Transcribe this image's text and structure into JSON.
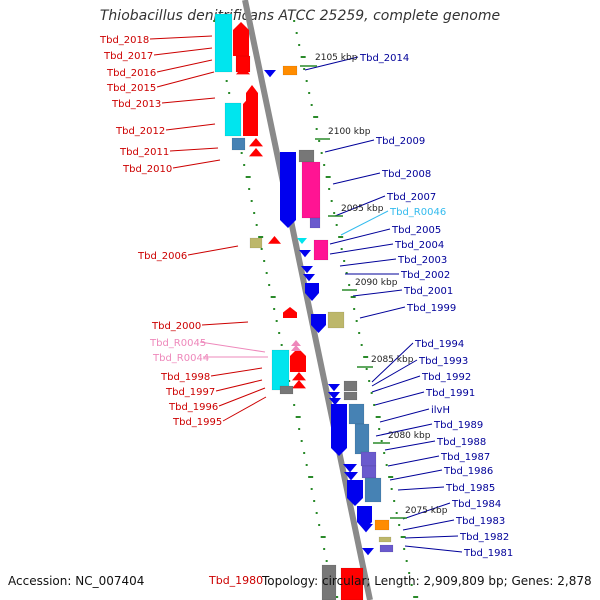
{
  "title": "Thiobacillus denitrificans ATCC 25259, complete genome",
  "accession": "Accession: NC_007404",
  "summary": "Topology: circular; Length: 2,909,809 bp; Genes: 2,878",
  "footer_gene": "Tbd_1980",
  "colors": {
    "backbone": "#8a8a8a",
    "tick_dot": "#2a8a2a",
    "label_left": "#cc0000",
    "label_right": "#000099",
    "label_rna_right": "#33bbee",
    "label_rna_left": "#ee88bb",
    "gene_red": "#ff0000",
    "gene_blue": "#0000ee",
    "gene_cyan": "#00e5ee",
    "gene_magenta": "#ff1493",
    "gene_steel": "#4682b4",
    "gene_khaki": "#bdb76b",
    "gene_orange": "#ff8c00",
    "gene_gray": "#777777",
    "gene_slate": "#6a5acd"
  },
  "kbp_markers": [
    {
      "label": "2105 kbp"
    },
    {
      "label": "2100 kbp"
    },
    {
      "label": "2095 kbp"
    },
    {
      "label": "2090 kbp"
    },
    {
      "label": "2085 kbp"
    },
    {
      "label": "2080 kbp"
    },
    {
      "label": "2075 kbp"
    }
  ],
  "left_labels": [
    {
      "text": "Tbd_2018"
    },
    {
      "text": "Tbd_2017"
    },
    {
      "text": "Tbd_2016"
    },
    {
      "text": "Tbd_2015"
    },
    {
      "text": "Tbd_2013"
    },
    {
      "text": "Tbd_2012"
    },
    {
      "text": "Tbd_2011"
    },
    {
      "text": "Tbd_2010"
    },
    {
      "text": "Tbd_2006"
    },
    {
      "text": "Tbd_2000"
    },
    {
      "text": "Tbd_R0045"
    },
    {
      "text": "Tbd_R0044"
    },
    {
      "text": "Tbd_1998"
    },
    {
      "text": "Tbd_1997"
    },
    {
      "text": "Tbd_1996"
    },
    {
      "text": "Tbd_1995"
    }
  ],
  "right_labels": [
    {
      "text": "Tbd_2014"
    },
    {
      "text": "Tbd_2009"
    },
    {
      "text": "Tbd_2008"
    },
    {
      "text": "Tbd_2007"
    },
    {
      "text": "Tbd_R0046"
    },
    {
      "text": "Tbd_2005"
    },
    {
      "text": "Tbd_2004"
    },
    {
      "text": "Tbd_2003"
    },
    {
      "text": "Tbd_2002"
    },
    {
      "text": "Tbd_2001"
    },
    {
      "text": "Tbd_1999"
    },
    {
      "text": "Tbd_1994"
    },
    {
      "text": "Tbd_1993"
    },
    {
      "text": "Tbd_1992"
    },
    {
      "text": "Tbd_1991"
    },
    {
      "text": "ilvH"
    },
    {
      "text": "Tbd_1989"
    },
    {
      "text": "Tbd_1988"
    },
    {
      "text": "Tbd_1987"
    },
    {
      "text": "Tbd_1986"
    },
    {
      "text": "Tbd_1985"
    },
    {
      "text": "Tbd_1984"
    },
    {
      "text": "Tbd_1983"
    },
    {
      "text": "Tbd_1982"
    },
    {
      "text": "Tbd_1981"
    }
  ]
}
